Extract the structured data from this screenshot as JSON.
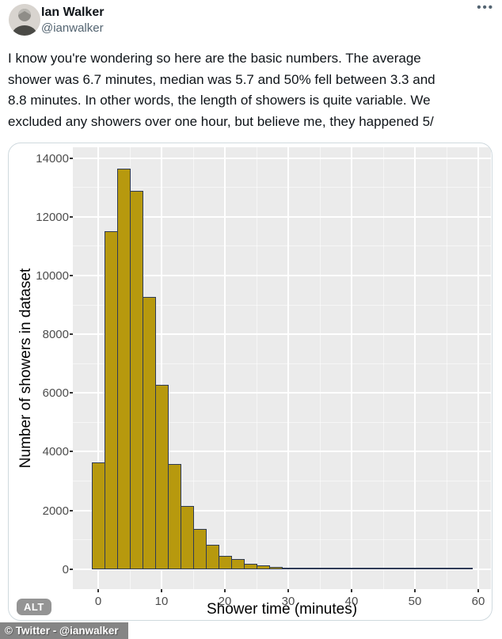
{
  "header": {
    "display_name": "Ian Walker",
    "handle": "@ianwalker",
    "more_label": "•••"
  },
  "tweet": {
    "lines": [
      "I know you're wondering so here are the basic numbers. The average",
      "shower was 6.7 minutes, median was 5.7 and 50% fell between 3.3 and",
      "8.8 minutes. In other words, the length of showers is quite variable. We",
      "excluded any showers over one hour, but believe me, they happened 5/"
    ]
  },
  "image": {
    "alt_badge": "ALT"
  },
  "watermark": "© Twitter - @ianwalker",
  "colors": {
    "bar_fill": "#b7990e",
    "bar_border": "#2e3a56",
    "panel_bg": "#ebebeb",
    "grid": "#ffffff",
    "axis_text": "#4d4d4d",
    "handle_gray": "#536471",
    "text_black": "#0f1419"
  },
  "chart_data": {
    "type": "bar",
    "title": "",
    "xlabel": "Shower time (minutes)",
    "ylabel": "Number of showers in dataset",
    "bin_width": 2,
    "categories": [
      0,
      2,
      4,
      6,
      8,
      10,
      12,
      14,
      16,
      18,
      20,
      22,
      24,
      26,
      28,
      30,
      32,
      34,
      36,
      38,
      40,
      42,
      44,
      46,
      48,
      50,
      52,
      54,
      56,
      58
    ],
    "values": [
      3630,
      11500,
      13640,
      12880,
      9270,
      6280,
      3590,
      2150,
      1360,
      820,
      460,
      330,
      190,
      130,
      80,
      55,
      40,
      28,
      20,
      16,
      14,
      12,
      10,
      9,
      8,
      7,
      6,
      5,
      5,
      4
    ],
    "xticks": [
      0,
      10,
      20,
      30,
      40,
      50,
      60
    ],
    "yticks": [
      0,
      2000,
      4000,
      6000,
      8000,
      10000,
      12000,
      14000
    ],
    "xticks_minor": [
      5,
      15,
      25,
      35,
      45,
      55
    ],
    "yticks_minor": [
      1000,
      3000,
      5000,
      7000,
      9000,
      11000,
      13000
    ],
    "xlim": [
      -4,
      62
    ],
    "ylim": [
      -682,
      14367
    ],
    "grid": true,
    "legend": false
  }
}
